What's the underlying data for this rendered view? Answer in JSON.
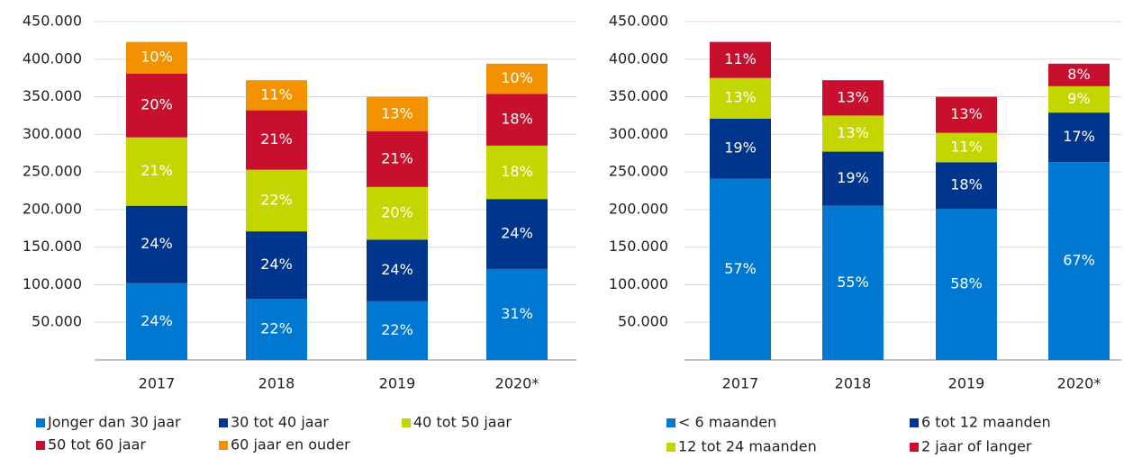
{
  "chart_data": [
    {
      "type": "stacked_bar",
      "categories": [
        "2017",
        "2018",
        "2019",
        "2020*"
      ],
      "ylim": [
        0,
        450000
      ],
      "yticks": [
        {
          "value": 50000,
          "label": "50.000"
        },
        {
          "value": 100000,
          "label": "100.000"
        },
        {
          "value": 150000,
          "label": "150.000"
        },
        {
          "value": 200000,
          "label": "200.000"
        },
        {
          "value": 250000,
          "label": "250.000"
        },
        {
          "value": 300000,
          "label": "300.000"
        },
        {
          "value": 350000,
          "label": "350.000"
        },
        {
          "value": 400000,
          "label": "400.000"
        },
        {
          "value": 450000,
          "label": "450.000"
        }
      ],
      "grid": true,
      "series": [
        {
          "name": "Jonger dan 30 jaar",
          "color": "#0078d2",
          "values": [
            102000,
            81000,
            78000,
            121000
          ],
          "value_labels": [
            "24%",
            "22%",
            "22%",
            "31%"
          ]
        },
        {
          "name": "30 tot 40 jaar",
          "color": "#00358e",
          "values": [
            103000,
            90000,
            82000,
            93000
          ],
          "value_labels": [
            "24%",
            "24%",
            "24%",
            "24%"
          ]
        },
        {
          "name": "40 tot 50 jaar",
          "color": "#c4d600",
          "values": [
            91000,
            82000,
            70000,
            71000
          ],
          "value_labels": [
            "21%",
            "22%",
            "20%",
            "18%"
          ]
        },
        {
          "name": "50 tot 60 jaar",
          "color": "#c8102e",
          "values": [
            85000,
            79000,
            74000,
            69000
          ],
          "value_labels": [
            "20%",
            "21%",
            "21%",
            "18%"
          ]
        },
        {
          "name": "60 jaar en ouder",
          "color": "#f39200",
          "values": [
            42000,
            40000,
            46000,
            40000
          ],
          "value_labels": [
            "10%",
            "11%",
            "13%",
            "10%"
          ]
        }
      ]
    },
    {
      "type": "stacked_bar",
      "categories": [
        "2017",
        "2018",
        "2019",
        "2020*"
      ],
      "ylim": [
        0,
        450000
      ],
      "yticks": [
        {
          "value": 50000,
          "label": "50.000"
        },
        {
          "value": 100000,
          "label": "100.000"
        },
        {
          "value": 150000,
          "label": "150.000"
        },
        {
          "value": 200000,
          "label": "200.000"
        },
        {
          "value": 250000,
          "label": "250.000"
        },
        {
          "value": 300000,
          "label": "300.000"
        },
        {
          "value": 350000,
          "label": "350.000"
        },
        {
          "value": 400000,
          "label": "400.000"
        },
        {
          "value": 450000,
          "label": "450.000"
        }
      ],
      "grid": true,
      "series": [
        {
          "name": "< 6 maanden",
          "color": "#0078d2",
          "values": [
            241000,
            205000,
            201000,
            263000
          ],
          "value_labels": [
            "57%",
            "55%",
            "58%",
            "67%"
          ]
        },
        {
          "name": "6 tot 12 maanden",
          "color": "#00358e",
          "values": [
            80000,
            72000,
            62000,
            66000
          ],
          "value_labels": [
            "19%",
            "19%",
            "18%",
            "17%"
          ]
        },
        {
          "name": "12 tot 24 maanden",
          "color": "#c4d600",
          "values": [
            54000,
            48000,
            39000,
            35000
          ],
          "value_labels": [
            "13%",
            "13%",
            "11%",
            "9%"
          ]
        },
        {
          "name": "2 jaar of langer",
          "color": "#c8102e",
          "values": [
            48000,
            47000,
            48000,
            30000
          ],
          "value_labels": [
            "11%",
            "13%",
            "13%",
            "8%"
          ]
        }
      ]
    }
  ]
}
